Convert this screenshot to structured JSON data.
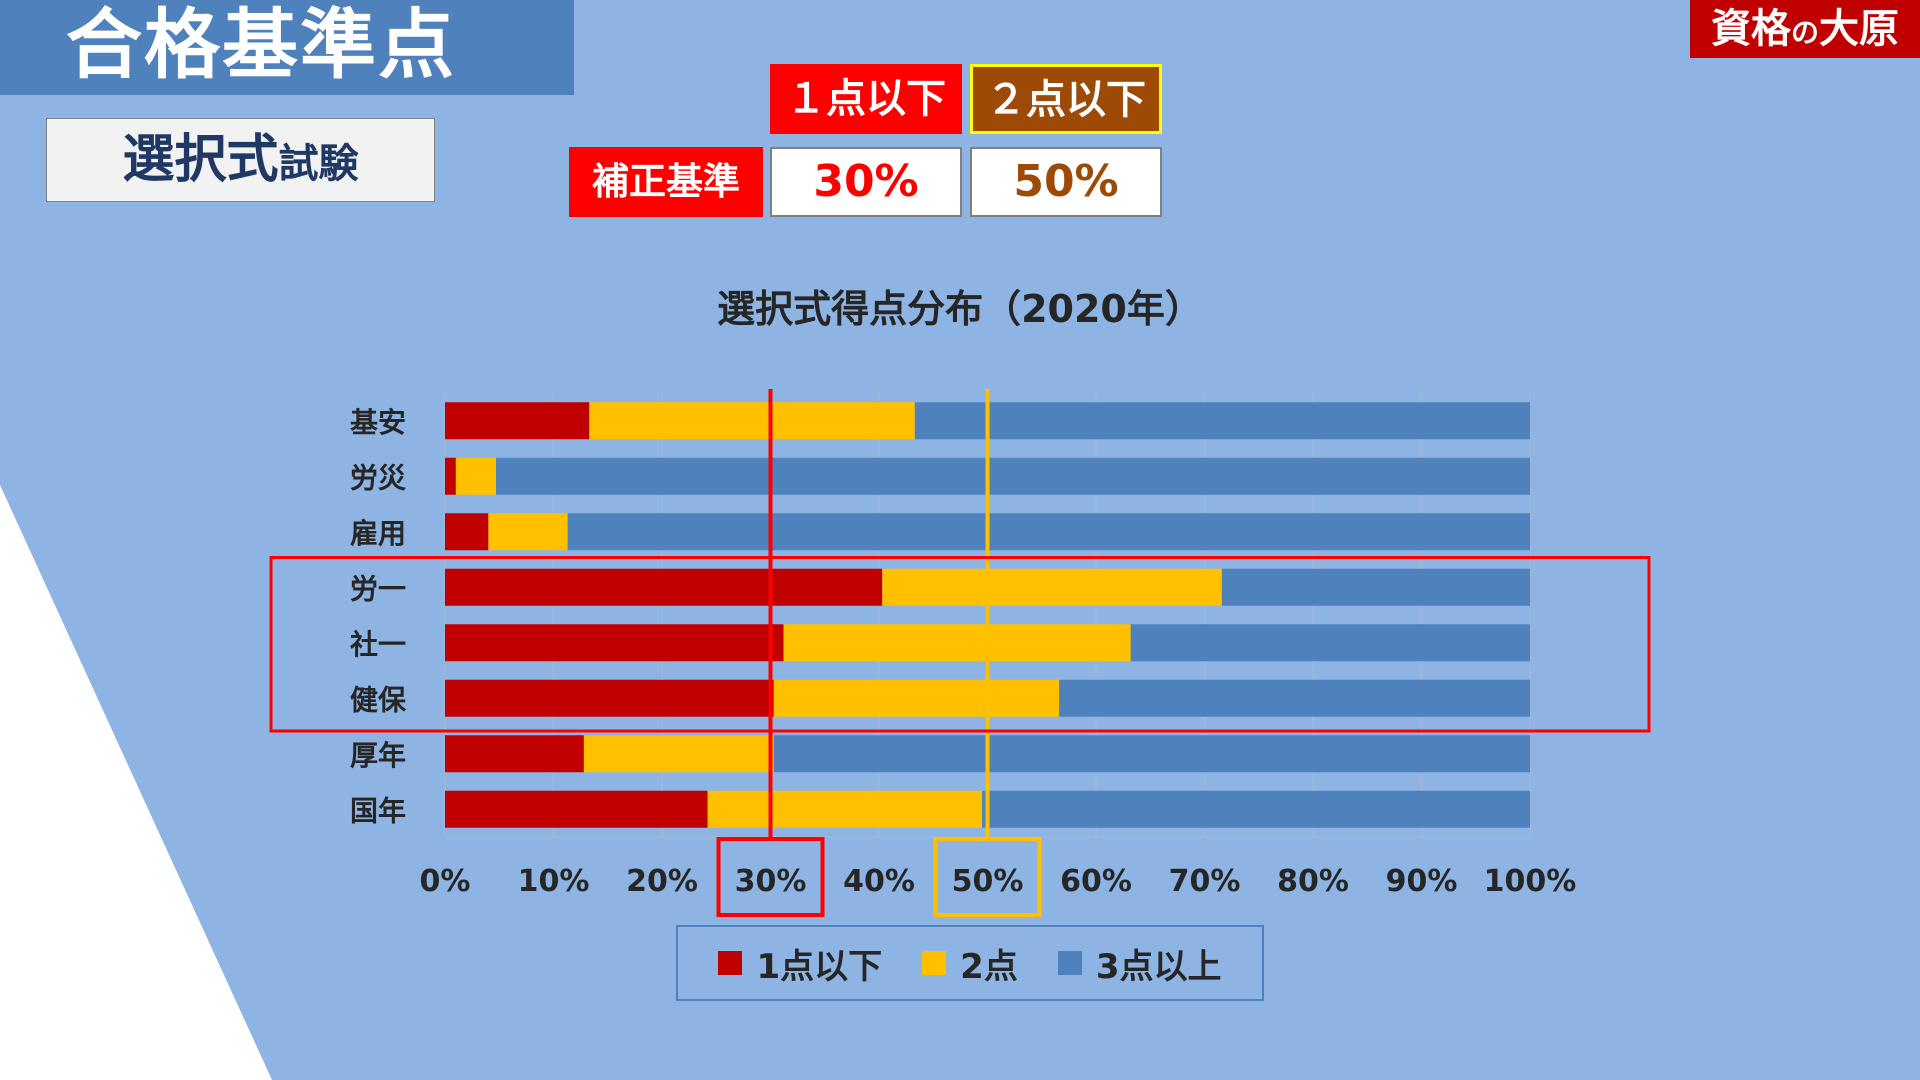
{
  "page": {
    "heading": "合格基準点",
    "subtitle_main": "選択式",
    "subtitle_small": "試験",
    "logo_part1": "資格",
    "logo_part2": "の",
    "logo_part3": "大原"
  },
  "criteria": {
    "header_1": "１点以下",
    "header_2": "２点以下",
    "label": "補正基準",
    "value_1": "30%",
    "value_2": "50%"
  },
  "colors": {
    "one_or_less": "#C00000",
    "two": "#FFC000",
    "three_or_more": "#4F81BD",
    "ref_30": "#FF0000",
    "ref_50": "#FFC000",
    "highlight": "#FF0000"
  },
  "chart_data": {
    "type": "bar",
    "orientation": "horizontal",
    "stacked": "percent",
    "title": "選択式得点分布（2020年）",
    "categories": [
      "基安",
      "労災",
      "雇用",
      "労一",
      "社一",
      "健保",
      "厚年",
      "国年"
    ],
    "series": [
      {
        "name": "1点以下",
        "values": [
          13.3,
          1.0,
          4.0,
          40.3,
          31.2,
          30.3,
          12.8,
          24.2
        ]
      },
      {
        "name": "2点",
        "values": [
          30.0,
          3.7,
          7.3,
          31.3,
          32.0,
          26.3,
          17.5,
          25.3
        ]
      },
      {
        "name": "3点以上",
        "values": [
          56.7,
          95.3,
          88.7,
          28.4,
          36.8,
          43.4,
          69.7,
          50.5
        ]
      }
    ],
    "x_ticks": [
      "0%",
      "10%",
      "20%",
      "30%",
      "40%",
      "50%",
      "60%",
      "70%",
      "80%",
      "90%",
      "100%"
    ],
    "xlim": [
      0,
      100
    ],
    "grid": true,
    "reference_lines": [
      30,
      50
    ],
    "highlighted_ticks": [
      "30%",
      "50%"
    ],
    "highlighted_categories": [
      "労一",
      "社一",
      "健保"
    ],
    "legend_position": "bottom"
  }
}
